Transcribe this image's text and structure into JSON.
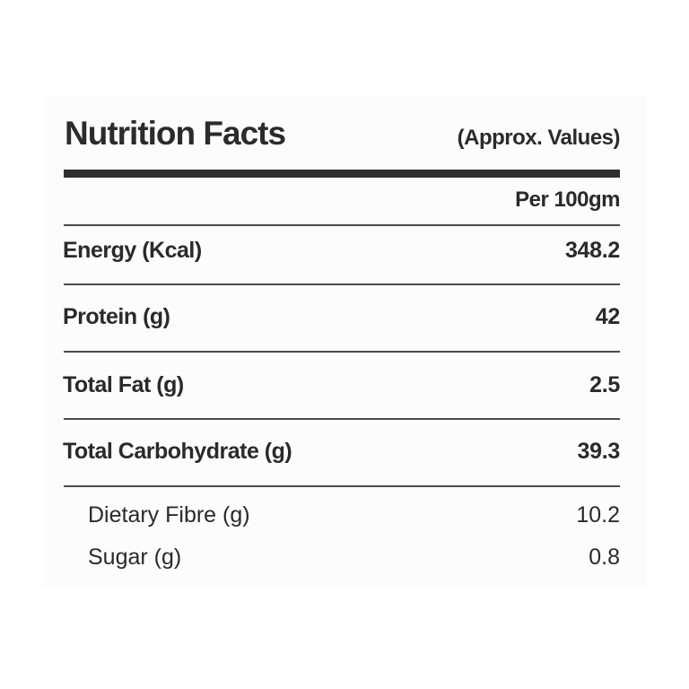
{
  "title": "Nutrition Facts",
  "note": "(Approx. Values)",
  "column_header": "Per 100gm",
  "nutrients": [
    {
      "name": "Energy (Kcal)",
      "value": "348.2"
    },
    {
      "name": "Protein (g)",
      "value": "42"
    },
    {
      "name": "Total Fat (g)",
      "value": "2.5"
    },
    {
      "name": "Total Carbohydrate (g)",
      "value": "39.3"
    }
  ],
  "sub_nutrients": [
    {
      "name": "Dietary Fibre (g)",
      "value": "10.2"
    },
    {
      "name": "Sugar (g)",
      "value": "0.8"
    }
  ],
  "colors": {
    "text": "#2a2a2a",
    "rule": "#2e2e2e",
    "background": "#fcfcfc"
  }
}
